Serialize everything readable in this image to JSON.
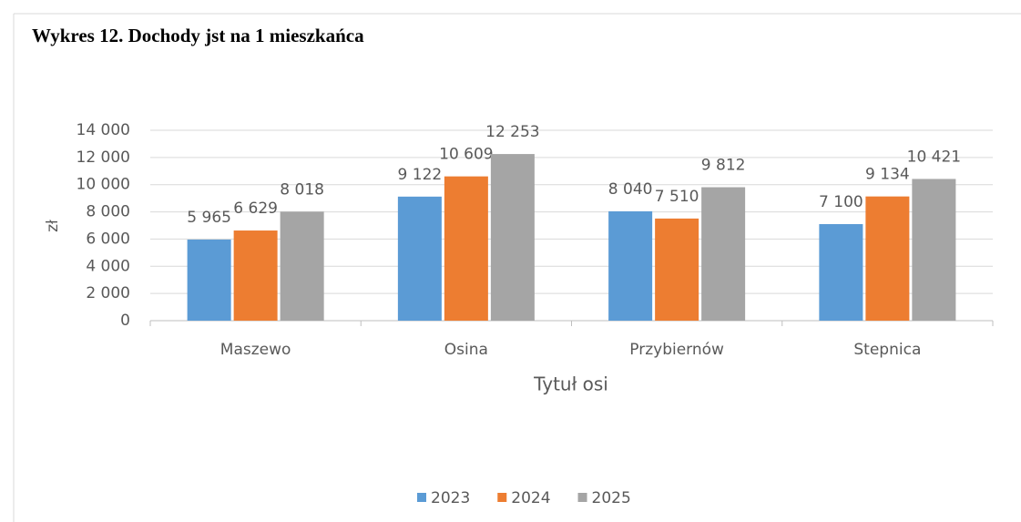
{
  "chart_data": {
    "type": "bar",
    "title": "Wykres 12. Dochody jst na 1 mieszkańca",
    "ylabel": "zł",
    "xlabel": "Tytuł osi",
    "categories": [
      "Maszewo",
      "Osina",
      "Przybiernów",
      "Stepnica"
    ],
    "series": [
      {
        "name": "2023",
        "color": "#5b9bd5",
        "values": [
          5965,
          9122,
          8040,
          7100
        ],
        "value_labels": [
          "5 965",
          "9 122",
          "8 040",
          "7 100"
        ]
      },
      {
        "name": "2024",
        "color": "#ed7d31",
        "values": [
          6629,
          10609,
          7510,
          9134
        ],
        "value_labels": [
          "6 629",
          "10 609",
          "7 510",
          "9 134"
        ]
      },
      {
        "name": "2025",
        "color": "#a5a5a5",
        "values": [
          8018,
          12253,
          9812,
          10421
        ],
        "value_labels": [
          "8 018",
          "12 253",
          "9 812",
          "10 421"
        ]
      }
    ],
    "ylim": [
      0,
      14000
    ],
    "yticks": [
      0,
      {
        "value": 2000,
        "label": "2 000"
      },
      {
        "value": 4000,
        "label": "4 000"
      },
      {
        "value": 6000,
        "label": "6 000"
      },
      {
        "value": 8000,
        "label": "8 000"
      },
      {
        "value": 10000,
        "label": "10 000"
      },
      {
        "value": 12000,
        "label": "12 000"
      },
      {
        "value": 14000,
        "label": "14 000"
      }
    ],
    "grid": true,
    "legend": "bottom"
  }
}
